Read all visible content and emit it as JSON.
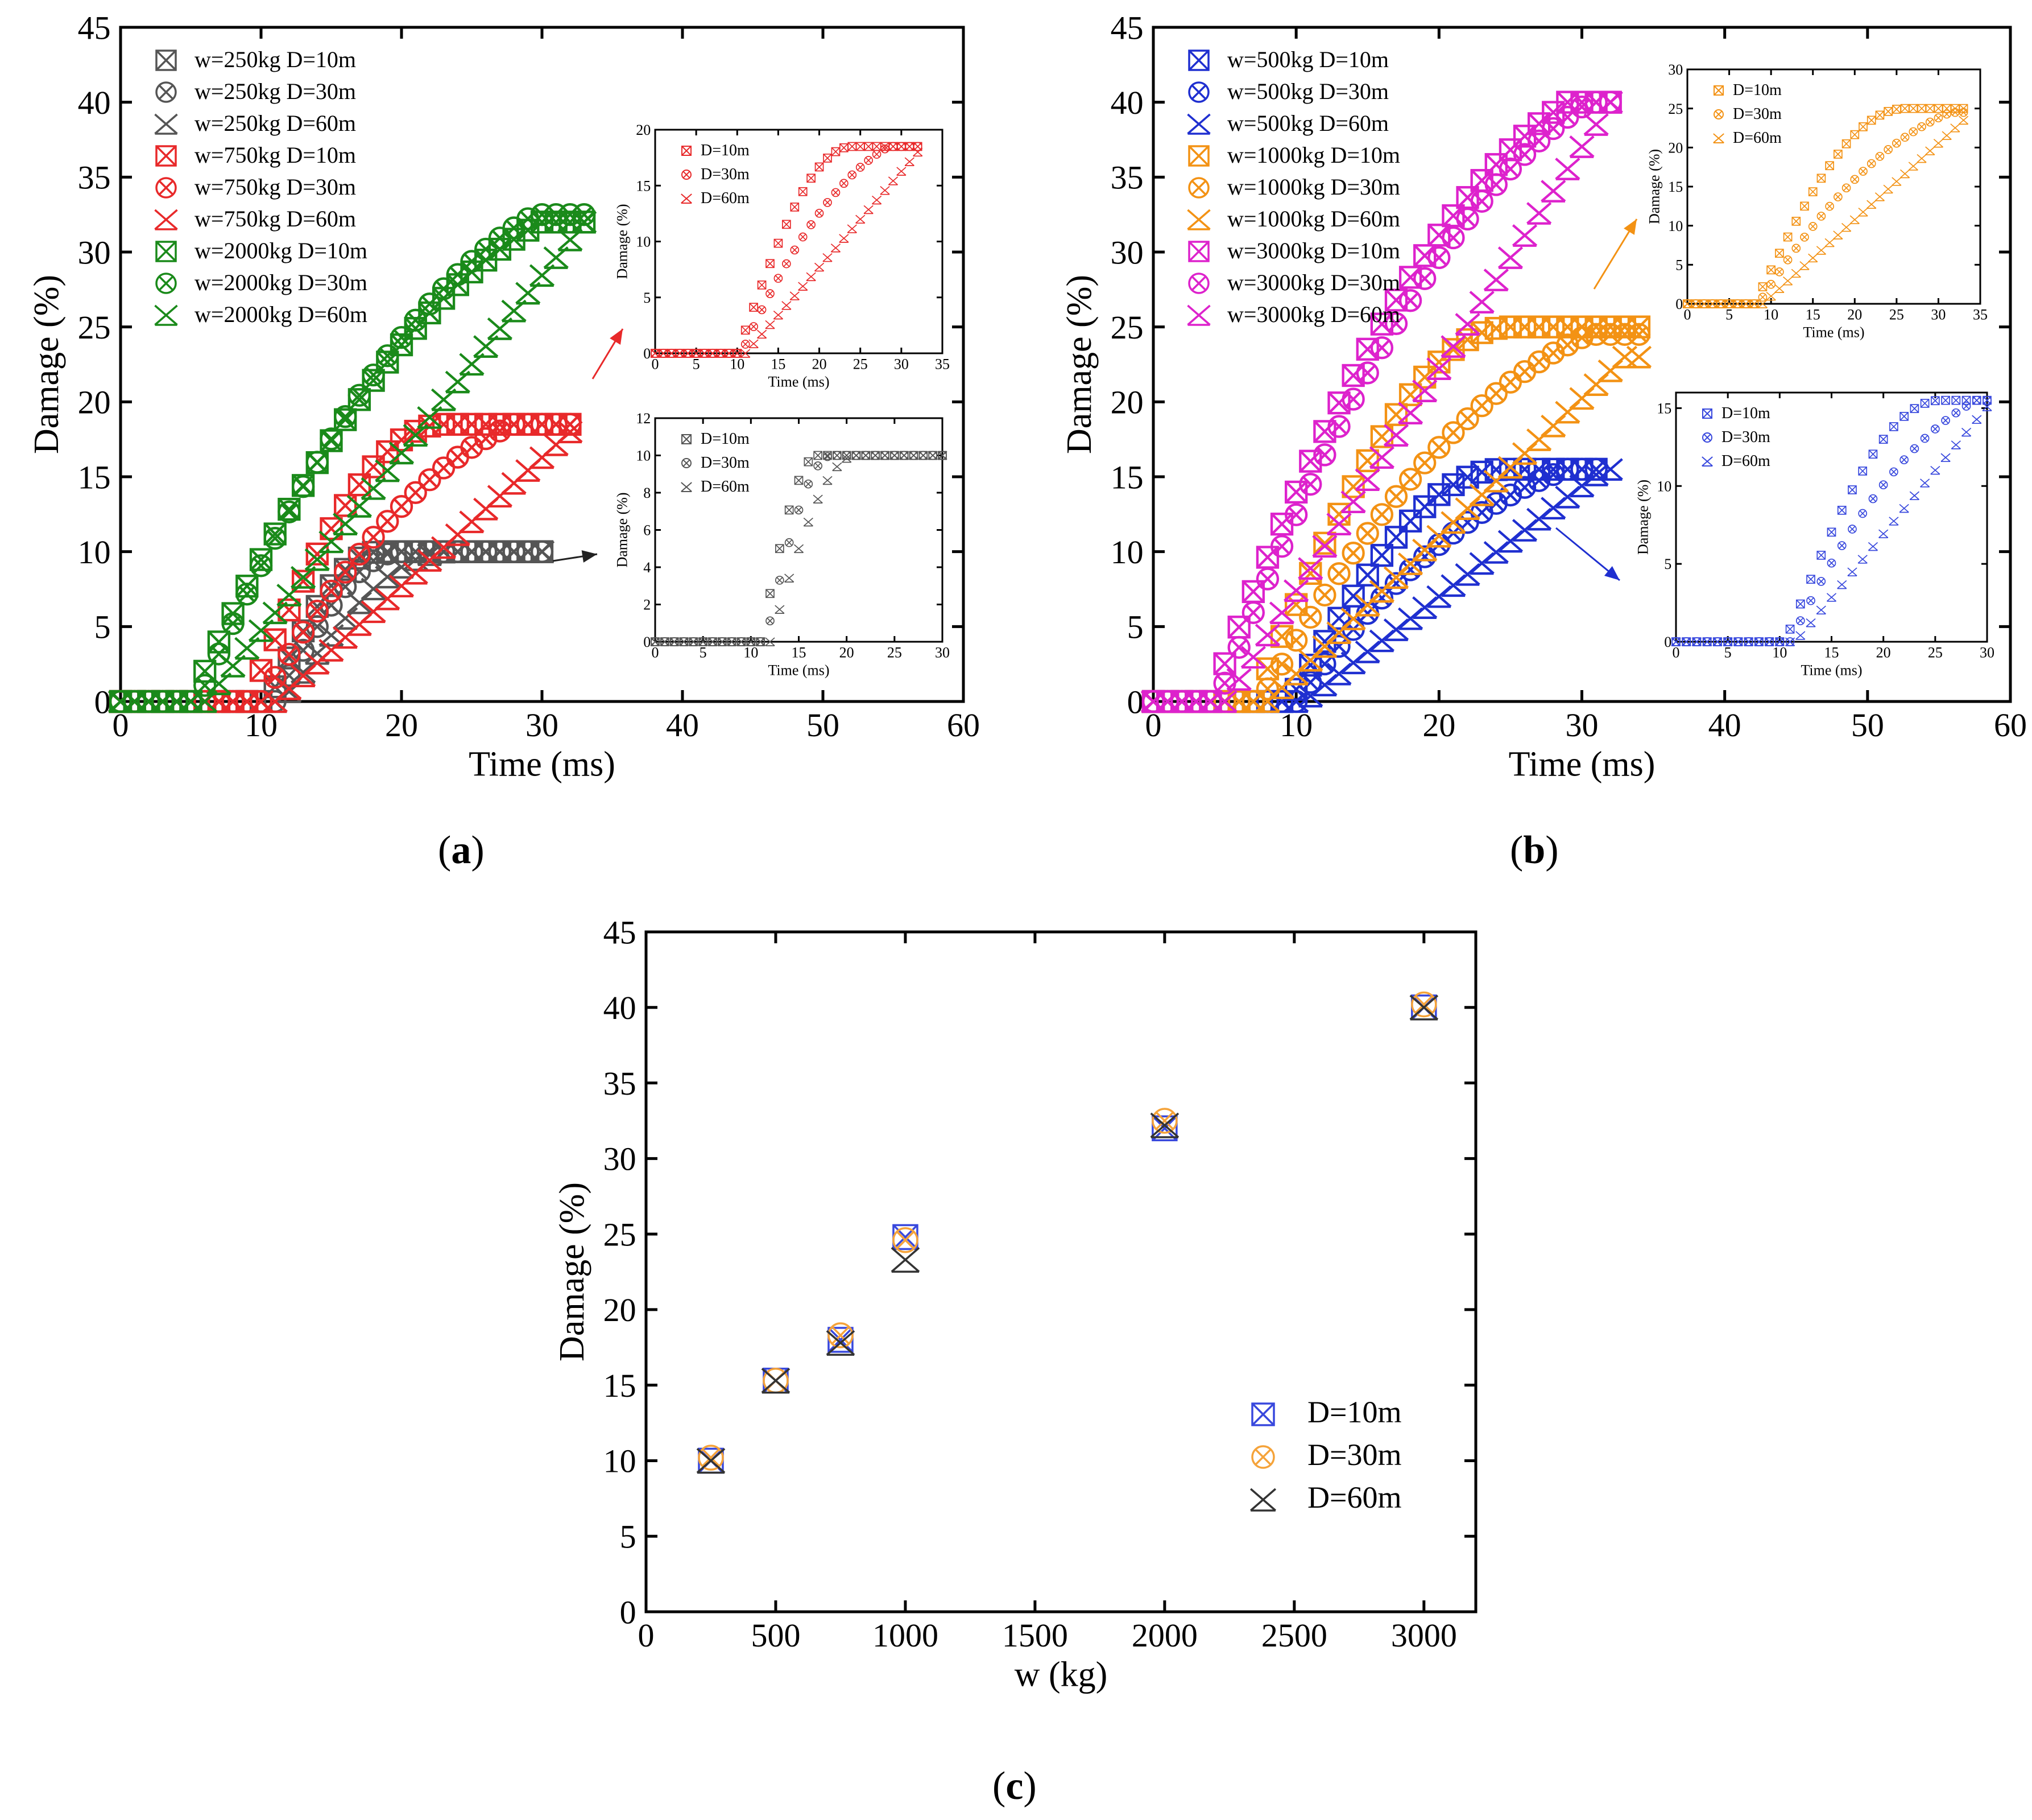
{
  "figure": {
    "captions": {
      "a": "a",
      "b": "b",
      "c": "c"
    }
  },
  "chart_data": [
    {
      "id": "a",
      "type": "scatter",
      "xlabel": "Time (ms)",
      "ylabel": "Damage (%)",
      "xlim": [
        0,
        60
      ],
      "ylim": [
        0,
        45
      ],
      "xticks": [
        0,
        10,
        20,
        30,
        40,
        50,
        60
      ],
      "yticks": [
        0,
        5,
        10,
        15,
        20,
        25,
        30,
        35,
        40,
        45
      ],
      "legend_position": "top-left",
      "series": [
        {
          "name": "w=250kg  D=10m",
          "color": "#555555",
          "marker": "square",
          "onset": 10.5,
          "end": 30,
          "final": 10,
          "len": 8,
          "shape": "quick"
        },
        {
          "name": "w=250kg  D=30m",
          "color": "#555555",
          "marker": "circle",
          "onset": 11,
          "end": 30,
          "final": 10,
          "len": 9,
          "shape": "quick"
        },
        {
          "name": "w=250kg  D=60m",
          "color": "#555555",
          "marker": "star",
          "onset": 11.5,
          "end": 30,
          "final": 10,
          "len": 12,
          "shape": "quick"
        },
        {
          "name": "w=750kg  D=10m",
          "color": "#e8292a",
          "marker": "square",
          "onset": 9,
          "end": 32,
          "final": 18.5,
          "len": 14,
          "shape": "quick"
        },
        {
          "name": "w=750kg  D=30m",
          "color": "#e8292a",
          "marker": "circle",
          "onset": 10,
          "end": 32,
          "final": 18.5,
          "len": 18,
          "shape": "mid"
        },
        {
          "name": "w=750kg  D=60m",
          "color": "#e8292a",
          "marker": "star",
          "onset": 11,
          "end": 32,
          "final": 18,
          "len": 21,
          "shape": "linear"
        },
        {
          "name": "w=2000kg  D=10m",
          "color": "#1a8a1a",
          "marker": "square",
          "onset": 5,
          "end": 33,
          "final": 32,
          "len": 25,
          "shape": "mid"
        },
        {
          "name": "w=2000kg  D=30m",
          "color": "#1a8a1a",
          "marker": "circle",
          "onset": 5.5,
          "end": 33,
          "final": 32.5,
          "len": 24,
          "shape": "mid"
        },
        {
          "name": "w=2000kg  D=60m",
          "color": "#1a8a1a",
          "marker": "star",
          "onset": 6,
          "end": 33,
          "final": 32,
          "len": 27,
          "shape": "linear"
        }
      ],
      "insets": [
        {
          "xlabel": "Time (ms)",
          "ylabel": "Damage (%)",
          "xlim": [
            0,
            35
          ],
          "ylim": [
            0,
            20
          ],
          "xticks": [
            0,
            5,
            10,
            15,
            20,
            25,
            30,
            35
          ],
          "yticks": [
            0,
            5,
            10,
            15,
            20
          ],
          "color": "#e8292a",
          "series": [
            {
              "name": "D=10m",
              "marker": "square",
              "onset": 10,
              "end": 32,
              "final": 18.5,
              "len": 14,
              "shape": "quick"
            },
            {
              "name": "D=30m",
              "marker": "circle",
              "onset": 10.5,
              "end": 32,
              "final": 18.5,
              "len": 18,
              "shape": "mid"
            },
            {
              "name": "D=60m",
              "marker": "star",
              "onset": 11,
              "end": 32,
              "final": 18,
              "len": 21,
              "shape": "linear"
            }
          ]
        },
        {
          "xlabel": "Time (ms)",
          "ylabel": "Damage (%)",
          "xlim": [
            0,
            30
          ],
          "ylim": [
            0,
            12
          ],
          "xticks": [
            0,
            5,
            10,
            15,
            20,
            25,
            30
          ],
          "yticks": [
            0,
            2,
            4,
            6,
            8,
            10,
            12
          ],
          "color": "#555555",
          "series": [
            {
              "name": "D=10m",
              "marker": "square",
              "onset": 11,
              "end": 30,
              "final": 10,
              "len": 6,
              "shape": "quick"
            },
            {
              "name": "D=30m",
              "marker": "circle",
              "onset": 11.5,
              "end": 30,
              "final": 10,
              "len": 7,
              "shape": "quick"
            },
            {
              "name": "D=60m",
              "marker": "star",
              "onset": 12,
              "end": 30,
              "final": 10,
              "len": 9,
              "shape": "quick"
            }
          ]
        }
      ]
    },
    {
      "id": "b",
      "type": "scatter",
      "xlabel": "Time (ms)",
      "ylabel": "Damage (%)",
      "xlim": [
        0,
        60
      ],
      "ylim": [
        0,
        45
      ],
      "xticks": [
        0,
        10,
        20,
        30,
        40,
        50,
        60
      ],
      "yticks": [
        0,
        5,
        10,
        15,
        20,
        25,
        30,
        35,
        40,
        45
      ],
      "legend_position": "top-left",
      "series": [
        {
          "name": "w=500kg  D=10m",
          "color": "#1f2fd0",
          "marker": "square",
          "onset": 9.5,
          "end": 31,
          "final": 15.5,
          "len": 15,
          "shape": "quick"
        },
        {
          "name": "w=500kg  D=30m",
          "color": "#1f2fd0",
          "marker": "circle",
          "onset": 10,
          "end": 31,
          "final": 15.5,
          "len": 19,
          "shape": "mid"
        },
        {
          "name": "w=500kg  D=60m",
          "color": "#1f2fd0",
          "marker": "star",
          "onset": 10.5,
          "end": 32,
          "final": 15.5,
          "len": 21,
          "shape": "linear"
        },
        {
          "name": "w=1000kg  D=10m",
          "color": "#f39214",
          "marker": "square",
          "onset": 7,
          "end": 34,
          "final": 25,
          "len": 18,
          "shape": "quick"
        },
        {
          "name": "w=1000kg  D=30m",
          "color": "#f39214",
          "marker": "circle",
          "onset": 7.5,
          "end": 34,
          "final": 24.5,
          "len": 23,
          "shape": "mid"
        },
        {
          "name": "w=1000kg  D=60m",
          "color": "#f39214",
          "marker": "star",
          "onset": 8,
          "end": 34,
          "final": 23,
          "len": 25,
          "shape": "linear"
        },
        {
          "name": "w=3000kg  D=10m",
          "color": "#dd22cc",
          "marker": "square",
          "onset": 4,
          "end": 32,
          "final": 40,
          "len": 25,
          "shape": "mid"
        },
        {
          "name": "w=3000kg  D=30m",
          "color": "#dd22cc",
          "marker": "circle",
          "onset": 4.5,
          "end": 32,
          "final": 40,
          "len": 26,
          "shape": "mid"
        },
        {
          "name": "w=3000kg  D=60m",
          "color": "#dd22cc",
          "marker": "star",
          "onset": 5,
          "end": 32,
          "final": 40,
          "len": 27,
          "shape": "linear"
        }
      ],
      "insets": [
        {
          "xlabel": "Time (ms)",
          "ylabel": "Damage (%)",
          "xlim": [
            0,
            35
          ],
          "ylim": [
            0,
            30
          ],
          "xticks": [
            0,
            5,
            10,
            15,
            20,
            25,
            30,
            35
          ],
          "yticks": [
            0,
            5,
            10,
            15,
            20,
            25,
            30
          ],
          "color": "#f39214",
          "series": [
            {
              "name": "D=10m",
              "marker": "square",
              "onset": 8,
              "end": 33,
              "final": 25,
              "len": 18,
              "shape": "quick"
            },
            {
              "name": "D=30m",
              "marker": "circle",
              "onset": 8.5,
              "end": 33,
              "final": 24.5,
              "len": 23,
              "shape": "mid"
            },
            {
              "name": "D=60m",
              "marker": "star",
              "onset": 9,
              "end": 33,
              "final": 23.5,
              "len": 24,
              "shape": "linear"
            }
          ]
        },
        {
          "xlabel": "Time (ms)",
          "ylabel": "Damage (%)",
          "xlim": [
            0,
            30
          ],
          "ylim": [
            0,
            16
          ],
          "xticks": [
            0,
            5,
            10,
            15,
            20,
            25,
            30
          ],
          "yticks": [
            0,
            5,
            10,
            15
          ],
          "color": "#3848dd",
          "series": [
            {
              "name": "D=10m",
              "marker": "square",
              "onset": 10.5,
              "end": 30,
              "final": 15.5,
              "len": 15,
              "shape": "quick"
            },
            {
              "name": "D=30m",
              "marker": "circle",
              "onset": 11,
              "end": 30,
              "final": 15.5,
              "len": 18,
              "shape": "mid"
            },
            {
              "name": "D=60m",
              "marker": "star",
              "onset": 11.5,
              "end": 30,
              "final": 15.5,
              "len": 19,
              "shape": "linear"
            }
          ]
        }
      ]
    },
    {
      "id": "c",
      "type": "scatter",
      "xlabel": "w (kg)",
      "ylabel": "Damage (%)",
      "xlim": [
        0,
        3200
      ],
      "ylim": [
        0,
        45
      ],
      "xticks": [
        0,
        500,
        1000,
        1500,
        2000,
        2500,
        3000
      ],
      "yticks": [
        0,
        5,
        10,
        15,
        20,
        25,
        30,
        35,
        40,
        45
      ],
      "legend_position": "bottom-right",
      "series": [
        {
          "name": "D=10m",
          "color": "#3848dd",
          "marker": "square",
          "x": [
            250,
            500,
            750,
            1000,
            2000,
            3000
          ],
          "y": [
            10,
            15.3,
            18,
            24.8,
            32,
            40
          ]
        },
        {
          "name": "D=30m",
          "color": "#f5a33a",
          "marker": "circle",
          "x": [
            250,
            500,
            750,
            1000,
            2000,
            3000
          ],
          "y": [
            10.2,
            15.3,
            18.3,
            24.6,
            32.5,
            40.2
          ]
        },
        {
          "name": "D=60m",
          "color": "#333333",
          "marker": "star",
          "x": [
            250,
            500,
            750,
            1000,
            2000,
            3000
          ],
          "y": [
            10,
            15.3,
            17.8,
            23.3,
            32.2,
            40
          ]
        }
      ]
    }
  ]
}
